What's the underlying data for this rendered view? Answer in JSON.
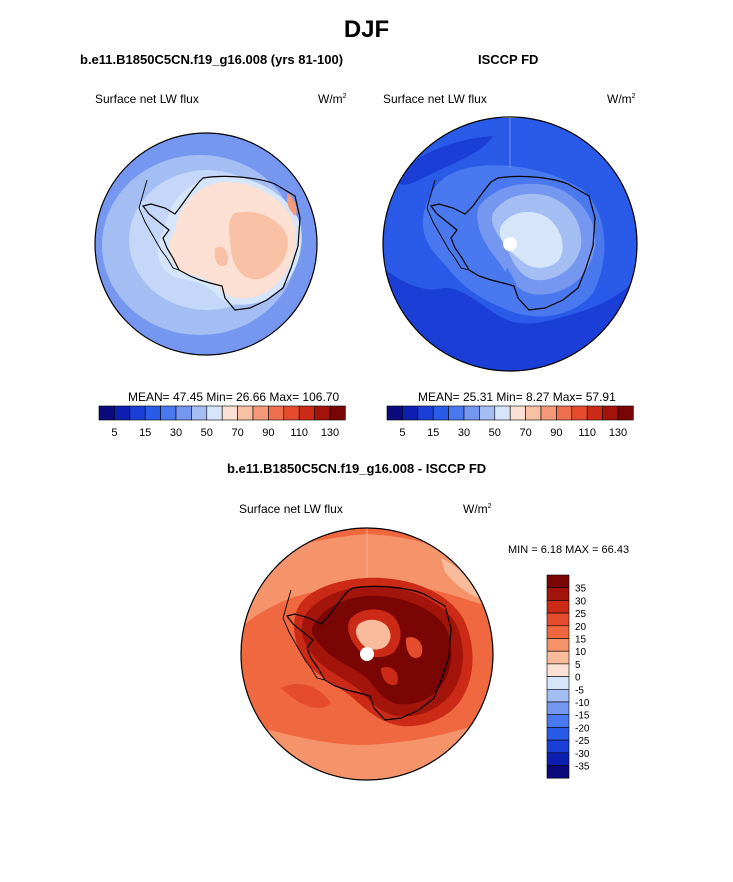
{
  "figure": {
    "title": "DJF"
  },
  "panels": {
    "model": {
      "title": "b.e11.B1850C5CN.f19_g16.008 (yrs 81-100)",
      "variable": "Surface net LW flux",
      "units_base": "W/m",
      "units_exp": "2",
      "stats": "MEAN=  47.45  Min=  26.66  Max= 106.70"
    },
    "obs": {
      "title": "ISCCP FD",
      "variable": "Surface net LW flux",
      "units_base": "W/m",
      "units_exp": "2",
      "stats": "MEAN=  25.31  Min=   8.27  Max=  57.91"
    },
    "diff": {
      "title": "b.e11.B1850C5CN.f19_g16.008 - ISCCP FD",
      "variable": "Surface net LW flux",
      "units_base": "W/m",
      "units_exp": "2",
      "stats": "MIN =   6.18 MAX =  66.43"
    }
  },
  "colorbars": {
    "abs": {
      "colors": [
        "#0a0a7a",
        "#0c1fb0",
        "#1b3fd6",
        "#2a5be8",
        "#4a78ee",
        "#7597f0",
        "#a4bdf3",
        "#d6e6fa",
        "#fbe0d3",
        "#f8c0a4",
        "#f59a77",
        "#ef7050",
        "#e54b2d",
        "#cb2a17",
        "#a3140a",
        "#7a0505"
      ],
      "labels": [
        "5",
        "15",
        "30",
        "50",
        "70",
        "90",
        "110",
        "130"
      ]
    },
    "diff": {
      "colors": [
        "#7a0505",
        "#a3140a",
        "#cb2a17",
        "#e54b2d",
        "#f0683f",
        "#f5936b",
        "#f8bb9c",
        "#fbe0d3",
        "#d6e6fa",
        "#a4bdf3",
        "#7597f0",
        "#4a78ee",
        "#2a5be8",
        "#1b3fd6",
        "#0c1fb0",
        "#0a0a7a"
      ],
      "labels": [
        "35",
        "30",
        "25",
        "20",
        "15",
        "10",
        "5",
        "0",
        "-5",
        "-10",
        "-15",
        "-20",
        "-25",
        "-30",
        "-35"
      ]
    }
  }
}
